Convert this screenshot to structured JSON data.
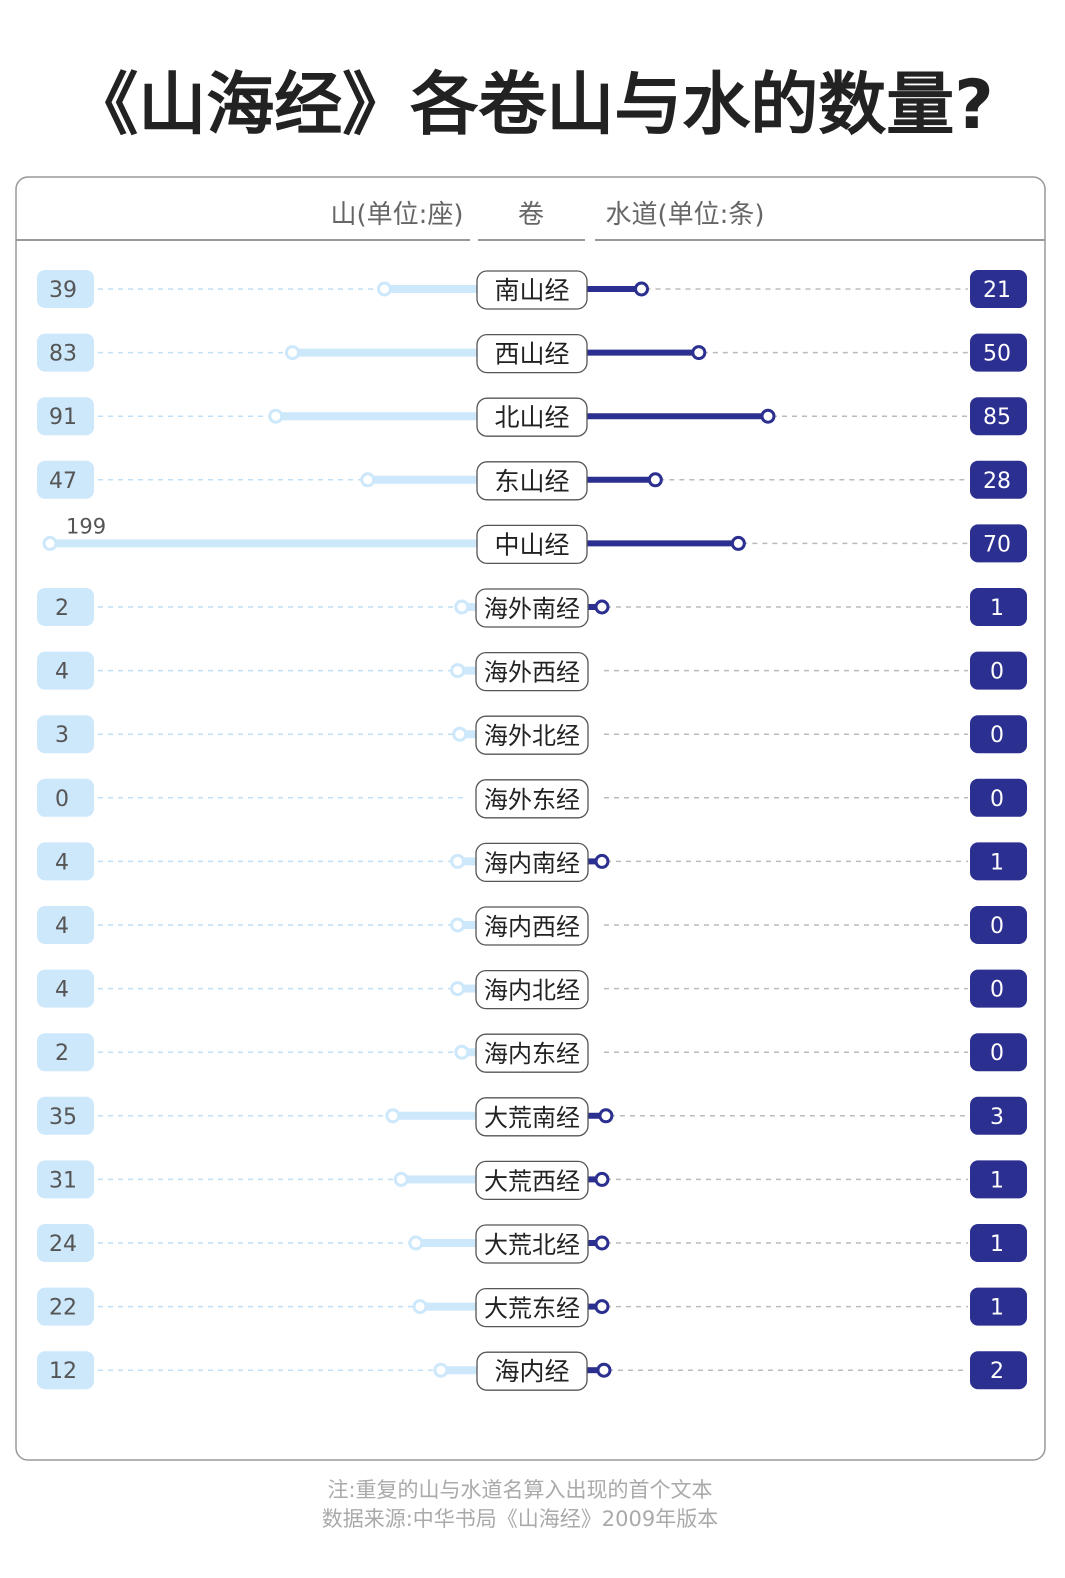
{
  "chart_data": {
    "type": "diverging-lollipop",
    "title": "《山海经》各卷山与水的数量?",
    "header": {
      "left": "山(单位:座)",
      "center": "卷",
      "right": "水道(单位:条)"
    },
    "categories": [
      "南山经",
      "西山经",
      "北山经",
      "东山经",
      "中山经",
      "海外南经",
      "海外西经",
      "海外北经",
      "海外东经",
      "海内南经",
      "海内西经",
      "海内北经",
      "海内东经",
      "大荒南经",
      "大荒西经",
      "大荒北经",
      "大荒东经",
      "海内经"
    ],
    "series": [
      {
        "name": "山(单位:座)",
        "side": "left",
        "color": "#cde7fb",
        "values": [
          39,
          83,
          91,
          47,
          199,
          2,
          4,
          3,
          0,
          4,
          4,
          4,
          2,
          35,
          31,
          24,
          22,
          12
        ]
      },
      {
        "name": "水道(单位:条)",
        "side": "right",
        "color": "#2b2f8f",
        "values": [
          21,
          50,
          85,
          28,
          70,
          1,
          0,
          0,
          0,
          1,
          0,
          0,
          0,
          3,
          1,
          1,
          1,
          2
        ]
      }
    ],
    "notes": [
      "注:重复的山与水道名算入出现的首个文本",
      "数据来源:中华书局《山海经》2009年版本"
    ]
  }
}
